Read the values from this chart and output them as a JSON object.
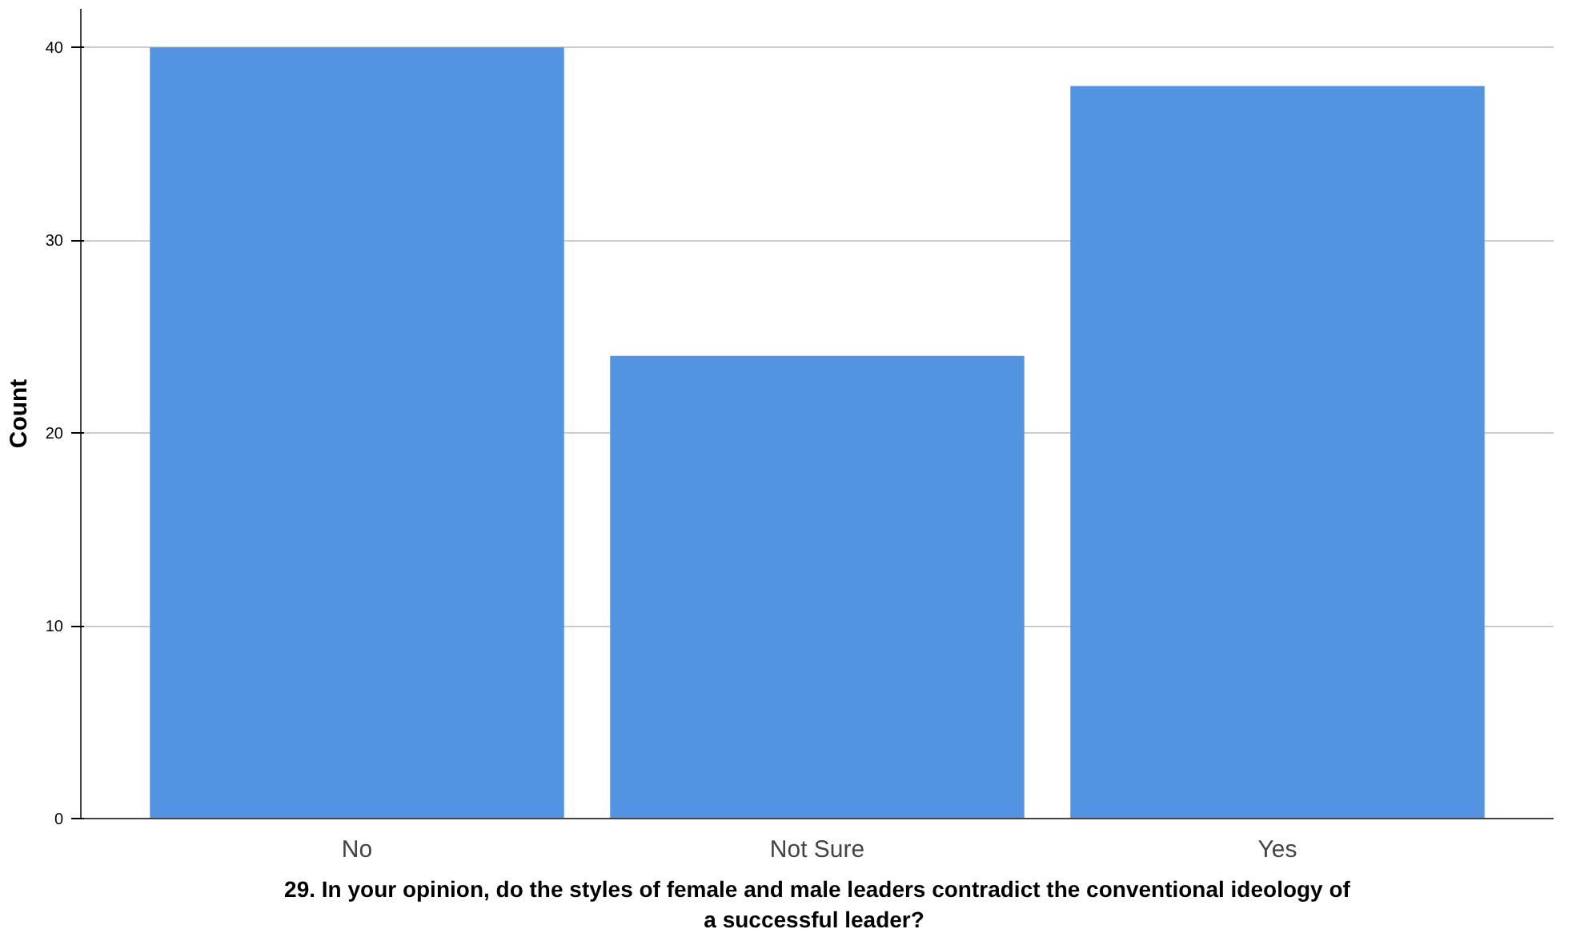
{
  "chart_data": {
    "type": "bar",
    "categories": [
      "No",
      "Not Sure",
      "Yes"
    ],
    "values": [
      40,
      24,
      38
    ],
    "color": "#5294e2",
    "xlabel": "29. In your opinion, do the styles of female and male leaders contradict the conventional ideology of\na  successful leader?",
    "ylabel": "Count",
    "ylim": [
      0,
      42
    ],
    "yticks": [
      0,
      10,
      20,
      30,
      40
    ],
    "grid": "y"
  }
}
